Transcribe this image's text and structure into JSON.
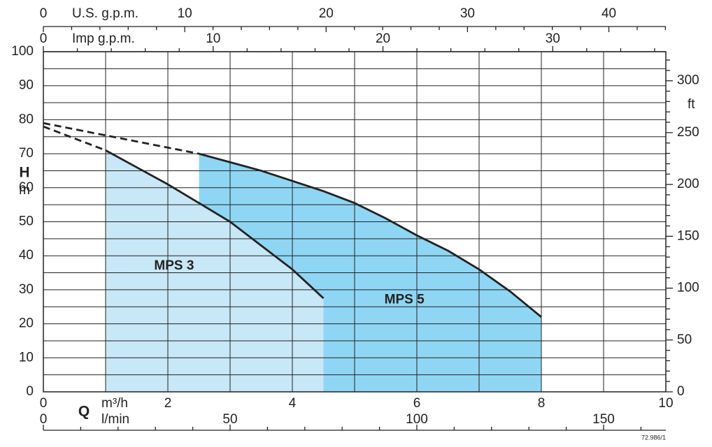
{
  "chart_data": {
    "type": "area",
    "y_label": "H",
    "y_unit": "m",
    "x_label": "Q",
    "x_unit": "m³/h",
    "xlim": [
      0,
      10
    ],
    "ylim": [
      0,
      100
    ],
    "xticks": [
      0,
      2,
      4,
      6,
      8,
      10
    ],
    "x_minor_ticks": [
      1,
      3,
      5,
      7,
      9
    ],
    "yticks": [
      0,
      10,
      20,
      30,
      40,
      50,
      60,
      70,
      80,
      90,
      100
    ],
    "y_minor_ticks": [
      5,
      15,
      25,
      35,
      45,
      55,
      65,
      75,
      85,
      95
    ],
    "grid": true,
    "axes": [
      {
        "label": "U.S. g.p.m.",
        "position": "top",
        "lim": [
          0,
          44.03
        ],
        "ticks": [
          0,
          10,
          20,
          30,
          40
        ],
        "minor_ticks": [
          2,
          4,
          6,
          8,
          12,
          14,
          16,
          18,
          22,
          24,
          26,
          28,
          32,
          34,
          36,
          38,
          42,
          44
        ]
      },
      {
        "label": "Imp g.p.m.",
        "position": "top",
        "lim": [
          0,
          36.66
        ],
        "ticks": [
          0,
          10,
          20,
          30
        ],
        "minor_ticks": [
          2,
          4,
          6,
          8,
          12,
          14,
          16,
          18,
          22,
          24,
          26,
          28,
          32,
          34,
          36
        ]
      },
      {
        "label": "l/min",
        "position": "bottom",
        "lim": [
          0,
          166.67
        ],
        "ticks": [
          0,
          50,
          100,
          150
        ],
        "minor_ticks": [
          10,
          20,
          30,
          40,
          60,
          70,
          80,
          90,
          110,
          120,
          130,
          140,
          160
        ]
      },
      {
        "label": "ft",
        "position": "right",
        "lim": [
          0,
          328.08
        ],
        "ticks": [
          0,
          50,
          100,
          150,
          200,
          250,
          300
        ],
        "minor_ticks": [
          10,
          20,
          30,
          40,
          60,
          70,
          80,
          90,
          110,
          120,
          130,
          140,
          160,
          170,
          180,
          190,
          210,
          220,
          230,
          240,
          260,
          270,
          280,
          290,
          310,
          320
        ]
      }
    ],
    "series": [
      {
        "name": "MPS 5",
        "color": "#8fd6f4",
        "x": [
          2.5,
          3,
          3.5,
          4,
          4.5,
          5,
          5.5,
          6,
          6.5,
          7,
          7.5,
          8
        ],
        "values": [
          70,
          67.5,
          65,
          62,
          59,
          55.5,
          51,
          46,
          41.5,
          36,
          29.5,
          22
        ],
        "dashed": {
          "x": [
            0,
            2.5
          ],
          "values": [
            79,
            70
          ]
        }
      },
      {
        "name": "MPS 3",
        "color": "#c8e7f7",
        "x": [
          1,
          1.5,
          2,
          2.5,
          3,
          3.5,
          4,
          4.5
        ],
        "values": [
          71,
          66,
          61,
          55.5,
          50,
          43,
          36,
          27.5
        ],
        "dashed": {
          "x": [
            0,
            1
          ],
          "values": [
            78,
            71
          ]
        }
      }
    ],
    "code": "72.986/1"
  }
}
